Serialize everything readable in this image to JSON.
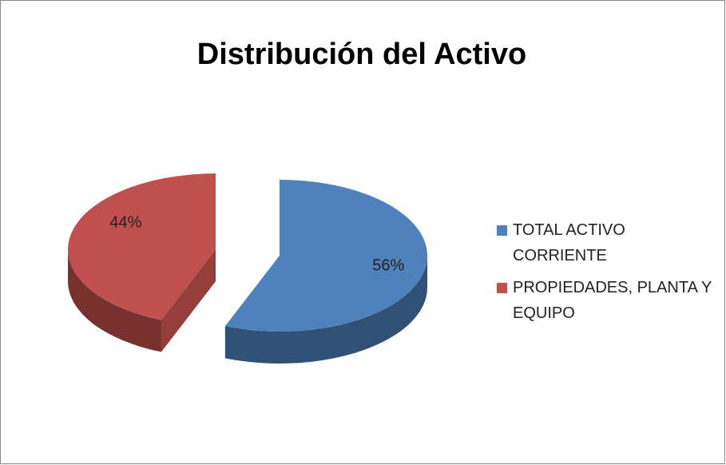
{
  "chart_data": {
    "type": "pie",
    "title": "Distribución del Activo",
    "categories": [
      "TOTAL ACTIVO CORRIENTE",
      "PROPIEDADES, PLANTA Y EQUIPO"
    ],
    "values": [
      56,
      44
    ],
    "value_labels": [
      "56%",
      "44%"
    ],
    "colors": [
      "#4f81bd",
      "#c0504d"
    ],
    "legend": "right"
  }
}
